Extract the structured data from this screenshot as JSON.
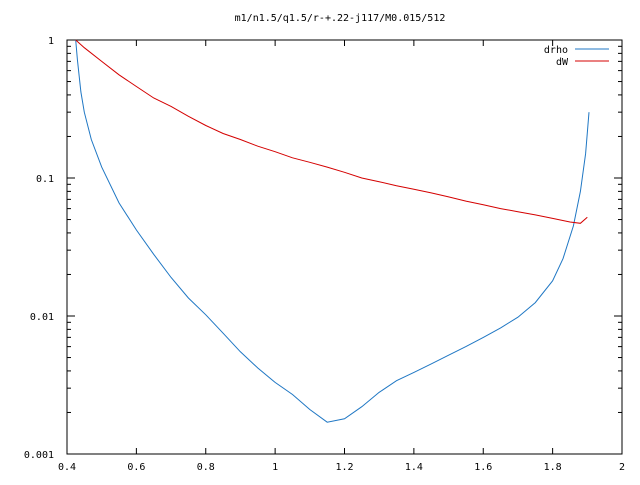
{
  "chart_data": {
    "type": "line",
    "title": "m1/n1.5/q1.5/r-+.22-j117/M0.015/512",
    "xlabel": "",
    "ylabel": "",
    "xlim": [
      0.4,
      2.0
    ],
    "ylim": [
      0.001,
      1
    ],
    "yscale": "log",
    "grid": false,
    "legend_position": "top-right",
    "x_ticks": [
      {
        "value": 0.4,
        "label": "0.4"
      },
      {
        "value": 0.6,
        "label": "0.6"
      },
      {
        "value": 0.8,
        "label": "0.8"
      },
      {
        "value": 1.0,
        "label": "1"
      },
      {
        "value": 1.2,
        "label": "1.2"
      },
      {
        "value": 1.4,
        "label": "1.4"
      },
      {
        "value": 1.6,
        "label": "1.6"
      },
      {
        "value": 1.8,
        "label": "1.8"
      },
      {
        "value": 2.0,
        "label": "2"
      }
    ],
    "y_ticks": [
      {
        "value": 1,
        "label": "1"
      },
      {
        "value": 0.1,
        "label": "0.1"
      },
      {
        "value": 0.01,
        "label": "0.01"
      },
      {
        "value": 0.001,
        "label": "0.001"
      }
    ],
    "series": [
      {
        "name": "drho",
        "color": "#1f77c4",
        "x": [
          0.425,
          0.43,
          0.44,
          0.45,
          0.47,
          0.5,
          0.55,
          0.6,
          0.65,
          0.7,
          0.75,
          0.8,
          0.85,
          0.9,
          0.95,
          1.0,
          1.05,
          1.1,
          1.15,
          1.2,
          1.25,
          1.3,
          1.35,
          1.4,
          1.45,
          1.5,
          1.55,
          1.6,
          1.65,
          1.7,
          1.75,
          1.8,
          1.83,
          1.86,
          1.88,
          1.895,
          1.905
        ],
        "y": [
          1.0,
          0.72,
          0.42,
          0.3,
          0.19,
          0.12,
          0.066,
          0.042,
          0.028,
          0.019,
          0.0135,
          0.0102,
          0.0075,
          0.0055,
          0.0042,
          0.0033,
          0.0027,
          0.0021,
          0.0017,
          0.0018,
          0.0022,
          0.0028,
          0.0034,
          0.0039,
          0.0045,
          0.0052,
          0.006,
          0.007,
          0.0082,
          0.0098,
          0.0125,
          0.018,
          0.026,
          0.045,
          0.08,
          0.15,
          0.3
        ]
      },
      {
        "name": "dW",
        "color": "#d40000",
        "x": [
          0.425,
          0.45,
          0.5,
          0.55,
          0.6,
          0.65,
          0.7,
          0.75,
          0.8,
          0.85,
          0.9,
          0.95,
          1.0,
          1.05,
          1.1,
          1.15,
          1.2,
          1.25,
          1.3,
          1.35,
          1.4,
          1.45,
          1.5,
          1.55,
          1.6,
          1.65,
          1.7,
          1.75,
          1.8,
          1.85,
          1.88,
          1.9
        ],
        "y": [
          1.0,
          0.88,
          0.7,
          0.56,
          0.46,
          0.38,
          0.33,
          0.28,
          0.24,
          0.21,
          0.19,
          0.17,
          0.155,
          0.14,
          0.13,
          0.12,
          0.11,
          0.1,
          0.094,
          0.088,
          0.083,
          0.078,
          0.073,
          0.068,
          0.064,
          0.06,
          0.057,
          0.054,
          0.051,
          0.048,
          0.047,
          0.052
        ]
      }
    ]
  }
}
